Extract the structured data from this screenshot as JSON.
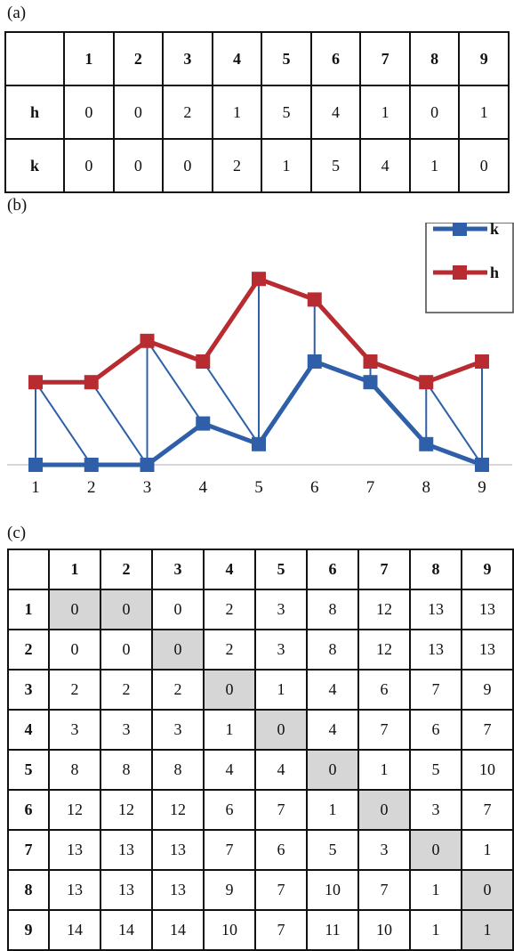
{
  "labels": {
    "a": "(a)",
    "b": "(b)",
    "c": "(c)"
  },
  "table_a": {
    "columns": [
      "1",
      "2",
      "3",
      "4",
      "5",
      "6",
      "7",
      "8",
      "9"
    ],
    "rows": [
      {
        "label": "h",
        "values": [
          "0",
          "0",
          "2",
          "1",
          "5",
          "4",
          "1",
          "0",
          "1"
        ]
      },
      {
        "label": "k",
        "values": [
          "0",
          "0",
          "0",
          "2",
          "1",
          "5",
          "4",
          "1",
          "0"
        ]
      }
    ]
  },
  "chart_data": {
    "type": "line",
    "x": [
      "1",
      "2",
      "3",
      "4",
      "5",
      "6",
      "7",
      "8",
      "9"
    ],
    "series": [
      {
        "name": "k",
        "values": [
          0,
          0,
          0,
          2,
          1,
          5,
          4,
          1,
          0
        ],
        "color": "#2e5fa8"
      },
      {
        "name": "h",
        "values": [
          4,
          4,
          6,
          5,
          9,
          8,
          5,
          4,
          5
        ],
        "color": "#b82b30"
      }
    ],
    "alignment_links": [
      [
        1,
        1
      ],
      [
        2,
        1
      ],
      [
        3,
        2
      ],
      [
        3,
        3
      ],
      [
        4,
        3
      ],
      [
        5,
        4
      ],
      [
        5,
        5
      ],
      [
        6,
        6
      ],
      [
        7,
        7
      ],
      [
        8,
        8
      ],
      [
        9,
        9
      ],
      [
        9,
        8
      ]
    ],
    "ylim": [
      0,
      10
    ],
    "legend": "top-right",
    "grid": false
  },
  "table_c": {
    "columns": [
      "1",
      "2",
      "3",
      "4",
      "5",
      "6",
      "7",
      "8",
      "9"
    ],
    "rows": [
      {
        "label": "1",
        "values": [
          "0",
          "0",
          "0",
          "2",
          "3",
          "8",
          "12",
          "13",
          "13"
        ],
        "shaded": [
          0,
          1
        ]
      },
      {
        "label": "2",
        "values": [
          "0",
          "0",
          "0",
          "2",
          "3",
          "8",
          "12",
          "13",
          "13"
        ],
        "shaded": [
          2
        ]
      },
      {
        "label": "3",
        "values": [
          "2",
          "2",
          "2",
          "0",
          "1",
          "4",
          "6",
          "7",
          "9"
        ],
        "shaded": [
          3
        ]
      },
      {
        "label": "4",
        "values": [
          "3",
          "3",
          "3",
          "1",
          "0",
          "4",
          "7",
          "6",
          "7"
        ],
        "shaded": [
          4
        ]
      },
      {
        "label": "5",
        "values": [
          "8",
          "8",
          "8",
          "4",
          "4",
          "0",
          "1",
          "5",
          "10"
        ],
        "shaded": [
          5
        ]
      },
      {
        "label": "6",
        "values": [
          "12",
          "12",
          "12",
          "6",
          "7",
          "1",
          "0",
          "3",
          "7"
        ],
        "shaded": [
          6
        ]
      },
      {
        "label": "7",
        "values": [
          "13",
          "13",
          "13",
          "7",
          "6",
          "5",
          "3",
          "0",
          "1"
        ],
        "shaded": [
          7
        ]
      },
      {
        "label": "8",
        "values": [
          "13",
          "13",
          "13",
          "9",
          "7",
          "10",
          "7",
          "1",
          "0"
        ],
        "shaded": [
          8
        ]
      },
      {
        "label": "9",
        "values": [
          "14",
          "14",
          "14",
          "10",
          "7",
          "11",
          "10",
          "1",
          "1"
        ],
        "shaded": [
          8
        ]
      }
    ]
  }
}
